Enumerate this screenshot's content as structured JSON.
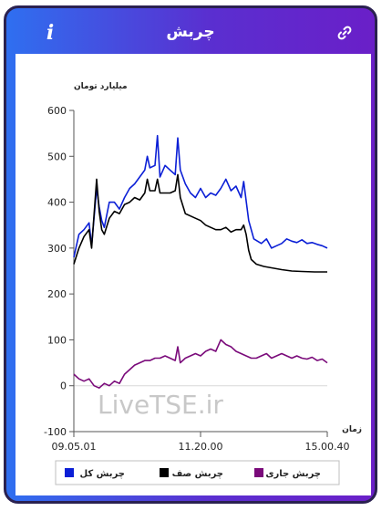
{
  "header": {
    "title": "چربش",
    "info_icon": "i",
    "link_icon": "link-icon"
  },
  "watermark": "LiveTSE.ir",
  "colors": {
    "total": "#0b1fd6",
    "queue": "#000000",
    "current": "#7a0a7a",
    "brand_gradient": [
      "#2f6ff0",
      "#6a1fc8"
    ]
  },
  "chart_data": {
    "type": "line",
    "ylabel": "میلیارد تومان",
    "xlabel": "زمان",
    "ylim": [
      -100,
      600
    ],
    "yticks": [
      "-100",
      "0",
      "100",
      "200",
      "300",
      "400",
      "500",
      "600"
    ],
    "xticks": [
      "09.05.01",
      "11.20.00",
      "15.00.40"
    ],
    "legend_position": "bottom",
    "series": [
      {
        "name": "چربش کل",
        "color": "#0b1fd6",
        "points": [
          [
            0,
            280
          ],
          [
            2,
            330
          ],
          [
            4,
            340
          ],
          [
            6,
            355
          ],
          [
            7,
            305
          ],
          [
            9,
            430
          ],
          [
            10,
            390
          ],
          [
            11,
            360
          ],
          [
            12,
            345
          ],
          [
            14,
            400
          ],
          [
            16,
            400
          ],
          [
            18,
            385
          ],
          [
            20,
            410
          ],
          [
            22,
            430
          ],
          [
            24,
            440
          ],
          [
            26,
            455
          ],
          [
            28,
            470
          ],
          [
            29,
            500
          ],
          [
            30,
            475
          ],
          [
            32,
            480
          ],
          [
            33,
            545
          ],
          [
            34,
            455
          ],
          [
            36,
            480
          ],
          [
            38,
            470
          ],
          [
            40,
            460
          ],
          [
            41,
            540
          ],
          [
            42,
            470
          ],
          [
            44,
            440
          ],
          [
            46,
            420
          ],
          [
            48,
            410
          ],
          [
            50,
            430
          ],
          [
            52,
            410
          ],
          [
            54,
            420
          ],
          [
            56,
            415
          ],
          [
            58,
            430
          ],
          [
            60,
            450
          ],
          [
            62,
            425
          ],
          [
            64,
            435
          ],
          [
            66,
            410
          ],
          [
            67,
            445
          ],
          [
            69,
            360
          ],
          [
            71,
            320
          ],
          [
            74,
            310
          ],
          [
            76,
            320
          ],
          [
            78,
            300
          ],
          [
            80,
            305
          ],
          [
            82,
            310
          ],
          [
            84,
            320
          ],
          [
            86,
            315
          ],
          [
            88,
            312
          ],
          [
            90,
            318
          ],
          [
            92,
            310
          ],
          [
            94,
            312
          ],
          [
            96,
            308
          ],
          [
            98,
            305
          ],
          [
            100,
            300
          ]
        ]
      },
      {
        "name": "چربش صف",
        "color": "#000000",
        "points": [
          [
            0,
            265
          ],
          [
            2,
            300
          ],
          [
            4,
            325
          ],
          [
            6,
            340
          ],
          [
            7,
            300
          ],
          [
            9,
            450
          ],
          [
            10,
            380
          ],
          [
            11,
            340
          ],
          [
            12,
            330
          ],
          [
            14,
            365
          ],
          [
            16,
            380
          ],
          [
            18,
            375
          ],
          [
            20,
            395
          ],
          [
            22,
            400
          ],
          [
            24,
            410
          ],
          [
            26,
            405
          ],
          [
            28,
            420
          ],
          [
            29,
            450
          ],
          [
            30,
            425
          ],
          [
            32,
            425
          ],
          [
            33,
            450
          ],
          [
            34,
            420
          ],
          [
            36,
            420
          ],
          [
            38,
            420
          ],
          [
            40,
            425
          ],
          [
            41,
            460
          ],
          [
            42,
            410
          ],
          [
            44,
            375
          ],
          [
            46,
            370
          ],
          [
            48,
            365
          ],
          [
            50,
            360
          ],
          [
            52,
            350
          ],
          [
            54,
            345
          ],
          [
            56,
            340
          ],
          [
            58,
            340
          ],
          [
            60,
            345
          ],
          [
            62,
            335
          ],
          [
            64,
            340
          ],
          [
            66,
            340
          ],
          [
            67,
            350
          ],
          [
            68,
            330
          ],
          [
            69,
            295
          ],
          [
            70,
            275
          ],
          [
            72,
            265
          ],
          [
            75,
            260
          ],
          [
            78,
            257
          ],
          [
            82,
            253
          ],
          [
            86,
            250
          ],
          [
            90,
            249
          ],
          [
            95,
            248
          ],
          [
            100,
            248
          ]
        ]
      },
      {
        "name": "چربش جاری",
        "color": "#7a0a7a",
        "points": [
          [
            0,
            25
          ],
          [
            2,
            15
          ],
          [
            4,
            10
          ],
          [
            6,
            15
          ],
          [
            8,
            0
          ],
          [
            10,
            -5
          ],
          [
            12,
            5
          ],
          [
            14,
            0
          ],
          [
            16,
            10
          ],
          [
            18,
            5
          ],
          [
            20,
            25
          ],
          [
            22,
            35
          ],
          [
            24,
            45
          ],
          [
            26,
            50
          ],
          [
            28,
            55
          ],
          [
            30,
            55
          ],
          [
            32,
            60
          ],
          [
            34,
            60
          ],
          [
            36,
            65
          ],
          [
            38,
            60
          ],
          [
            40,
            55
          ],
          [
            41,
            85
          ],
          [
            42,
            50
          ],
          [
            44,
            60
          ],
          [
            46,
            65
          ],
          [
            48,
            70
          ],
          [
            50,
            65
          ],
          [
            52,
            75
          ],
          [
            54,
            80
          ],
          [
            56,
            75
          ],
          [
            58,
            100
          ],
          [
            60,
            90
          ],
          [
            62,
            85
          ],
          [
            64,
            75
          ],
          [
            66,
            70
          ],
          [
            68,
            65
          ],
          [
            70,
            60
          ],
          [
            72,
            60
          ],
          [
            74,
            65
          ],
          [
            76,
            70
          ],
          [
            78,
            60
          ],
          [
            80,
            65
          ],
          [
            82,
            70
          ],
          [
            84,
            65
          ],
          [
            86,
            60
          ],
          [
            88,
            65
          ],
          [
            90,
            60
          ],
          [
            92,
            58
          ],
          [
            94,
            62
          ],
          [
            96,
            55
          ],
          [
            98,
            58
          ],
          [
            100,
            50
          ]
        ]
      }
    ]
  }
}
